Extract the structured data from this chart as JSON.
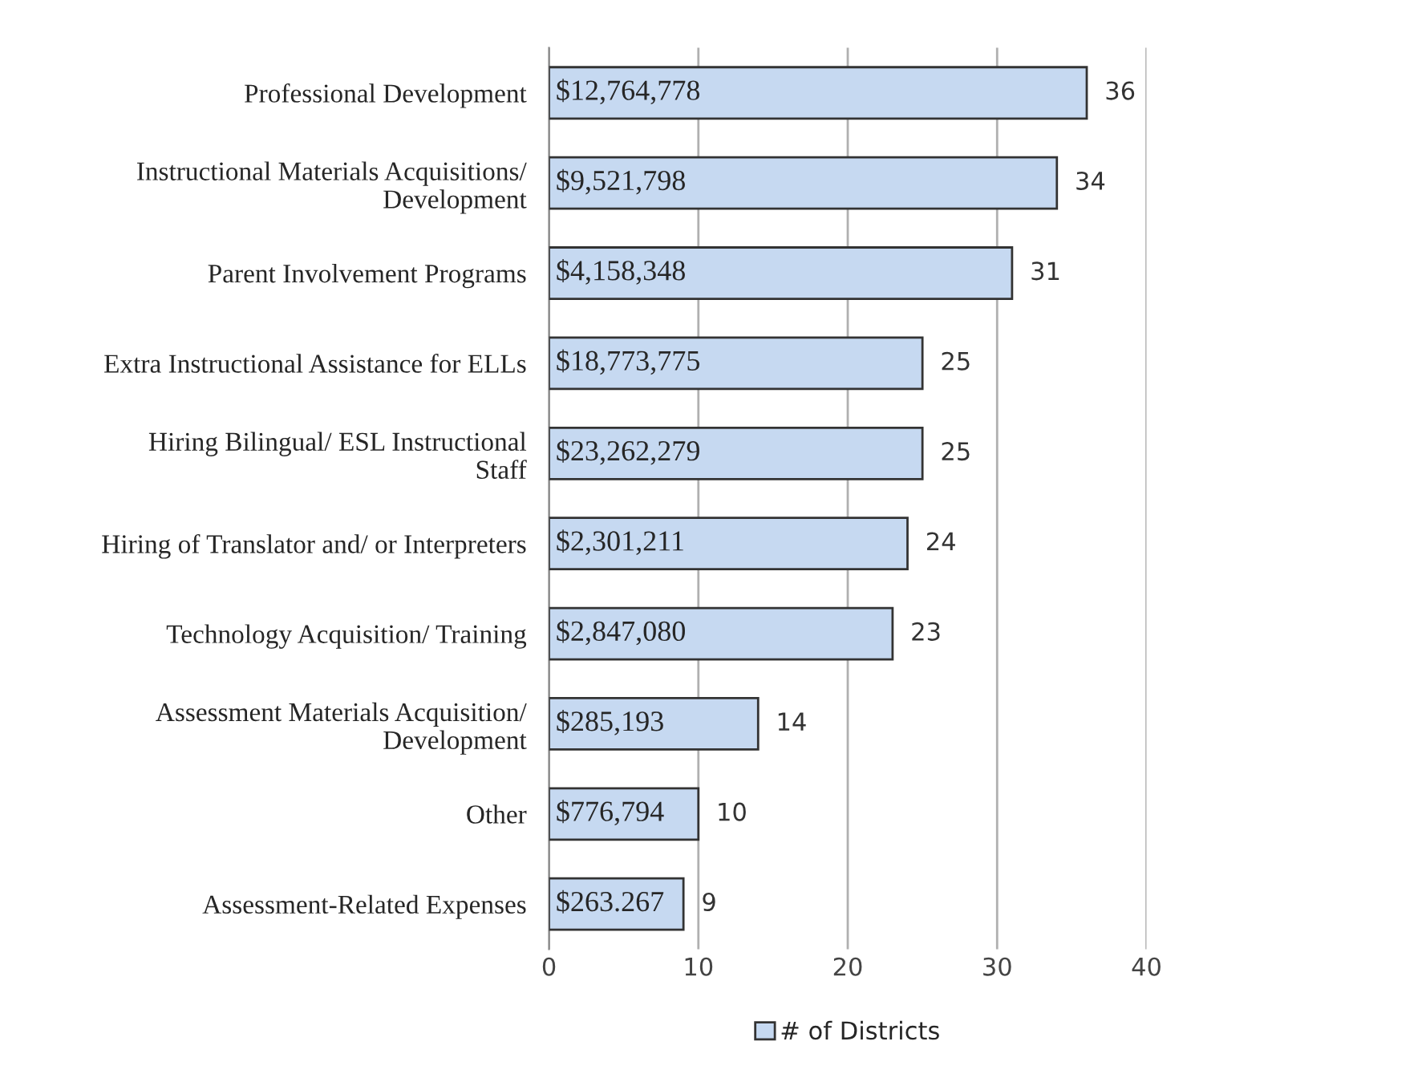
{
  "chart_data": {
    "type": "bar",
    "orientation": "horizontal",
    "categories": [
      "Professional Development",
      "Instructional Materials Acquisitions/\nDevelopment",
      "Parent Involvement Programs",
      "Extra Instructional Assistance for ELLs",
      "Hiring Bilingual/ ESL Instructional\nStaff",
      "Hiring of Translator and/ or Interpreters",
      "Technology Acquisition/ Training",
      "Assessment Materials Acquisition/\nDevelopment",
      "Other",
      "Assessment-Related Expenses"
    ],
    "series": [
      {
        "name": "# of Districts",
        "color": "#c6d9f1",
        "values": [
          36,
          34,
          31,
          25,
          25,
          24,
          23,
          14,
          10,
          9
        ]
      }
    ],
    "xlim": [
      0,
      40
    ],
    "xticks": [
      0,
      10,
      20,
      30,
      40
    ],
    "grid": "x",
    "legend": "bottom",
    "data_labels": true,
    "annotations": [
      "$12,764,778",
      "$9,521,798",
      "$4,158,348",
      "$18,773,775",
      "$23,262,279",
      "$2,301,211",
      "$2,847,080",
      "$285,193",
      "$776,794",
      "$263.267"
    ]
  }
}
